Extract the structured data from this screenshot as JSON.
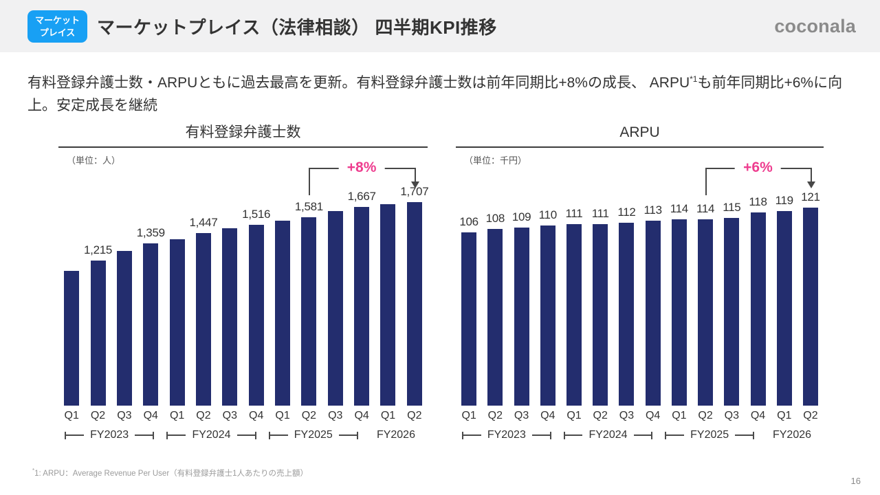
{
  "header": {
    "badge": {
      "color": "#18a0f4",
      "lines": [
        "マーケット",
        "プレイス"
      ]
    },
    "title": "マーケットプレイス（法律相談） 四半期KPI推移",
    "logo_text": "coconala"
  },
  "lead": {
    "before_sup": "有料登録弁護士数・ARPUともに過去最高を更新。有料登録弁護士数は前年同期比+8%の成長、 ARPU",
    "sup": "*1",
    "after_sup": "も前年同期比+6%に向上。安定成長を継続"
  },
  "chart_data": [
    {
      "type": "bar",
      "title": "有料登録弁護士数",
      "unit_label": "（単位：人）",
      "categories": [
        "Q1",
        "Q2",
        "Q3",
        "Q4",
        "Q1",
        "Q2",
        "Q3",
        "Q4",
        "Q1",
        "Q2",
        "Q3",
        "Q4",
        "Q1",
        "Q2"
      ],
      "fiscal_years": [
        {
          "label": "FY2023",
          "span": 4,
          "bracket": true
        },
        {
          "label": "FY2024",
          "span": 4,
          "bracket": true
        },
        {
          "label": "FY2025",
          "span": 4,
          "bracket": true
        },
        {
          "label": "FY2026",
          "span": 2,
          "bracket": false
        }
      ],
      "values": [
        1130,
        1215,
        1295,
        1359,
        1395,
        1447,
        1490,
        1516,
        1550,
        1581,
        1630,
        1667,
        1690,
        1707
      ],
      "value_labels": [
        null,
        "1,215",
        null,
        "1,359",
        null,
        "1,447",
        null,
        "1,516",
        null,
        "1,581",
        null,
        "1,667",
        null,
        "1,707"
      ],
      "ylim": [
        0,
        1960
      ],
      "grid": false,
      "bar_color": "#232d6e",
      "annotation": {
        "label": "+8%",
        "from_index": 9,
        "to_index": 13,
        "color": "#ee3d8f"
      }
    },
    {
      "type": "bar",
      "title": "ARPU",
      "unit_label": "（単位：千円）",
      "categories": [
        "Q1",
        "Q2",
        "Q3",
        "Q4",
        "Q1",
        "Q2",
        "Q3",
        "Q4",
        "Q1",
        "Q2",
        "Q3",
        "Q4",
        "Q1",
        "Q2"
      ],
      "fiscal_years": [
        {
          "label": "FY2023",
          "span": 4,
          "bracket": true
        },
        {
          "label": "FY2024",
          "span": 4,
          "bracket": true
        },
        {
          "label": "FY2025",
          "span": 4,
          "bracket": true
        },
        {
          "label": "FY2026",
          "span": 2,
          "bracket": false
        }
      ],
      "values": [
        106,
        108,
        109,
        110,
        111,
        111,
        112,
        113,
        114,
        114,
        115,
        118,
        119,
        121
      ],
      "value_labels": [
        "106",
        "108",
        "109",
        "110",
        "111",
        "111",
        "112",
        "113",
        "114",
        "114",
        "115",
        "118",
        "119",
        "121"
      ],
      "ylim": [
        0,
        143
      ],
      "grid": false,
      "bar_color": "#232d6e",
      "annotation": {
        "label": "+6%",
        "from_index": 9,
        "to_index": 13,
        "color": "#ee3d8f"
      }
    }
  ],
  "footnote": {
    "sup": "*",
    "text": "1: ARPU：Average Revenue Per User（有料登録弁護士1人あたりの売上額）"
  },
  "page_number": "16"
}
